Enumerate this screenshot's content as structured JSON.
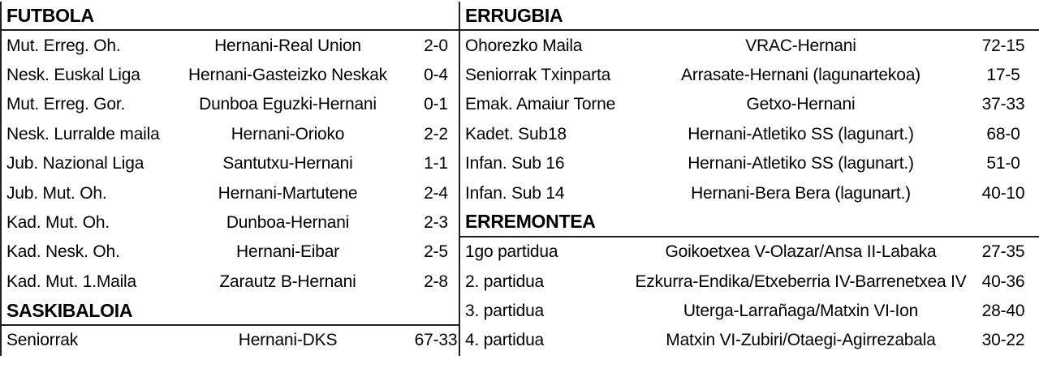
{
  "styles": {
    "background": "#ffffff",
    "text_color": "#000000",
    "rule_color": "#1f1f1f"
  },
  "left_column": {
    "sections": [
      {
        "title": "FUTBOLA",
        "rows": [
          {
            "label": "Mut. Erreg. Oh.",
            "match": "Hernani-Real Union",
            "score": "2-0"
          },
          {
            "label": "Nesk. Euskal Liga",
            "match": "Hernani-Gasteizko Neskak",
            "score": "0-4"
          },
          {
            "label": "Mut. Erreg. Gor.",
            "match": "Dunboa Eguzki-Hernani",
            "score": "0-1"
          },
          {
            "label": "Nesk. Lurralde maila",
            "match": "Hernani-Orioko",
            "score": "2-2"
          },
          {
            "label": "Jub. Nazional Liga",
            "match": "Santutxu-Hernani",
            "score": "1-1"
          },
          {
            "label": "Jub. Mut. Oh.",
            "match": "Hernani-Martutene",
            "score": "2-4"
          },
          {
            "label": "Kad. Mut. Oh.",
            "match": "Dunboa-Hernani",
            "score": "2-3"
          },
          {
            "label": "Kad. Nesk. Oh.",
            "match": "Hernani-Eibar",
            "score": "2-5"
          },
          {
            "label": "Kad. Mut. 1.Maila",
            "match": "Zarautz B-Hernani",
            "score": "2-8"
          }
        ]
      },
      {
        "title": "SASKIBALOIA",
        "rows": [
          {
            "label": "Seniorrak",
            "match": "Hernani-DKS",
            "score": "67-33"
          }
        ]
      }
    ]
  },
  "right_column": {
    "sections": [
      {
        "title": "ERRUGBIA",
        "rows": [
          {
            "label": "Ohorezko Maila",
            "match": "VRAC-Hernani",
            "score": "72-15"
          },
          {
            "label": "Seniorrak Txinparta",
            "match": "Arrasate-Hernani (lagunartekoa)",
            "score": "17-5"
          },
          {
            "label": "Emak. Amaiur Torne",
            "match": "Getxo-Hernani",
            "score": "37-33"
          },
          {
            "label": "Kadet. Sub18",
            "match": "Hernani-Atletiko SS (lagunart.)",
            "score": "68-0"
          },
          {
            "label": "Infan. Sub 16",
            "match": "Hernani-Atletiko SS (lagunart.)",
            "score": "51-0"
          },
          {
            "label": "Infan. Sub 14",
            "match": "Hernani-Bera Bera (lagunart.)",
            "score": "40-10"
          }
        ]
      },
      {
        "title": "ERREMONTEA",
        "rows": [
          {
            "label": "1go partidua",
            "match": "Goikoetxea V-Olazar/Ansa II-Labaka",
            "score": "27-35"
          },
          {
            "label": "2. partidua",
            "match": "Ezkurra-Endika/Etxeberria IV-Barrenetxea IV",
            "score": "40-36"
          },
          {
            "label": "3. partidua",
            "match": "Uterga-Larrañaga/Matxin VI-Ion",
            "score": "28-40"
          },
          {
            "label": "4. partidua",
            "match": "Matxin VI-Zubiri/Otaegi-Agirrezabala",
            "score": "30-22"
          }
        ]
      }
    ]
  }
}
